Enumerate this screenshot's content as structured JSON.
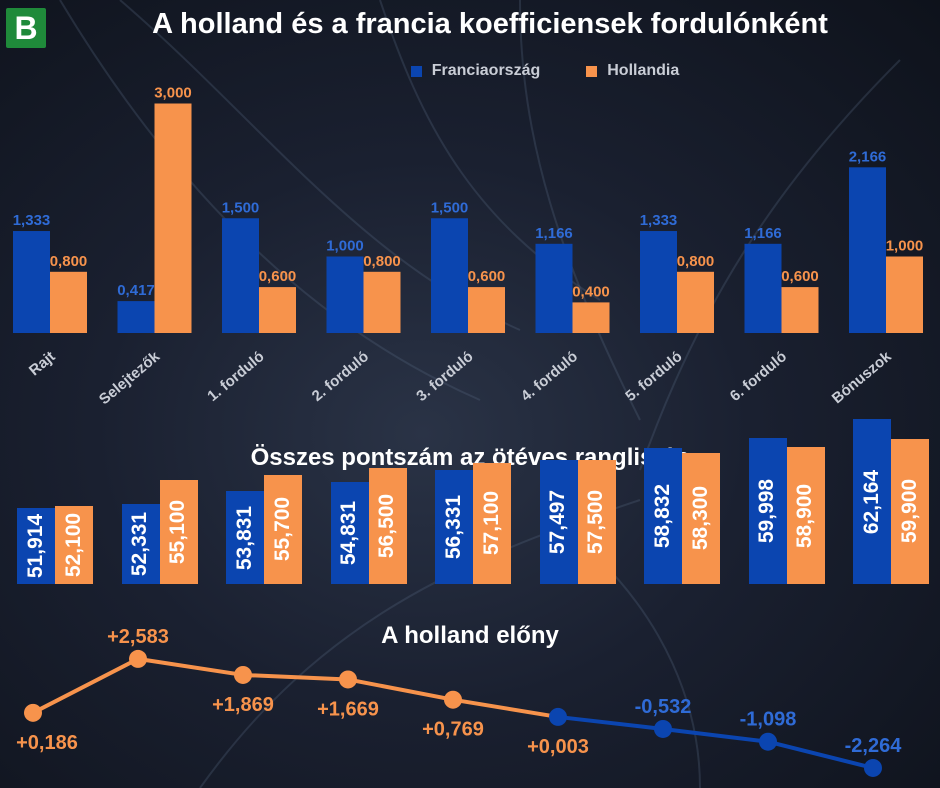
{
  "header": {
    "logo_letter": "B",
    "title": "A holland és a francia koefficiensek fordulónként"
  },
  "colors": {
    "france": "#0b45b0",
    "netherlands": "#f7934c",
    "france_label": "#2f6bd6",
    "netherlands_label": "#f7934c"
  },
  "legend": {
    "france": "Franciaország",
    "netherlands": "Hollandia"
  },
  "section_titles": {
    "totals": "Összes pontszám az ötéves ranglistán",
    "lead": "A holland előny"
  },
  "chart_data": [
    {
      "type": "bar",
      "title": "A holland és a francia koefficiensek fordulónként",
      "categories": [
        "Rajt",
        "Selejtezők",
        "1. forduló",
        "2. forduló",
        "3. forduló",
        "4. forduló",
        "5. forduló",
        "6. forduló",
        "Bónuszok"
      ],
      "series": [
        {
          "name": "Franciaország",
          "values": [
            1.333,
            0.417,
            1.5,
            1.0,
            1.5,
            1.166,
            1.333,
            1.166,
            2.166
          ],
          "labels": [
            "1,333",
            "0,417",
            "1,500",
            "1,000",
            "1,500",
            "1,166",
            "1,333",
            "1,166",
            "2,166"
          ]
        },
        {
          "name": "Hollandia",
          "values": [
            0.8,
            3.0,
            0.6,
            0.8,
            0.6,
            0.4,
            0.8,
            0.6,
            1.0
          ],
          "labels": [
            "0,800",
            "3,000",
            "0,600",
            "0,800",
            "0,600",
            "0,400",
            "0,800",
            "0,600",
            "1,000"
          ]
        }
      ],
      "ylim": [
        0,
        3.0
      ]
    },
    {
      "type": "bar",
      "title": "Összes pontszám az ötéves ranglistán",
      "series": [
        {
          "name": "Franciaország",
          "values": [
            51.914,
            52.331,
            53.831,
            54.831,
            56.331,
            57.497,
            58.832,
            59.998,
            62.164
          ],
          "labels": [
            "51,914",
            "52,331",
            "53,831",
            "54,831",
            "56,331",
            "57,497",
            "58,832",
            "59,998",
            "62,164"
          ]
        },
        {
          "name": "Hollandia",
          "values": [
            52.1,
            55.1,
            55.7,
            56.5,
            57.1,
            57.5,
            58.3,
            58.9,
            59.9
          ],
          "labels": [
            "52,100",
            "55,100",
            "55,700",
            "56,500",
            "57,100",
            "57,500",
            "58,300",
            "58,900",
            "59,900"
          ]
        }
      ]
    },
    {
      "type": "line",
      "title": "A holland előny",
      "values": [
        0.186,
        2.583,
        1.869,
        1.669,
        0.769,
        0.003,
        -0.532,
        -1.098,
        -2.264
      ],
      "labels": [
        "+0,186",
        "+2,583",
        "+1,869",
        "+1,669",
        "+0,769",
        "+0,003",
        "-0,532",
        "-1,098",
        "-2,264"
      ]
    }
  ]
}
